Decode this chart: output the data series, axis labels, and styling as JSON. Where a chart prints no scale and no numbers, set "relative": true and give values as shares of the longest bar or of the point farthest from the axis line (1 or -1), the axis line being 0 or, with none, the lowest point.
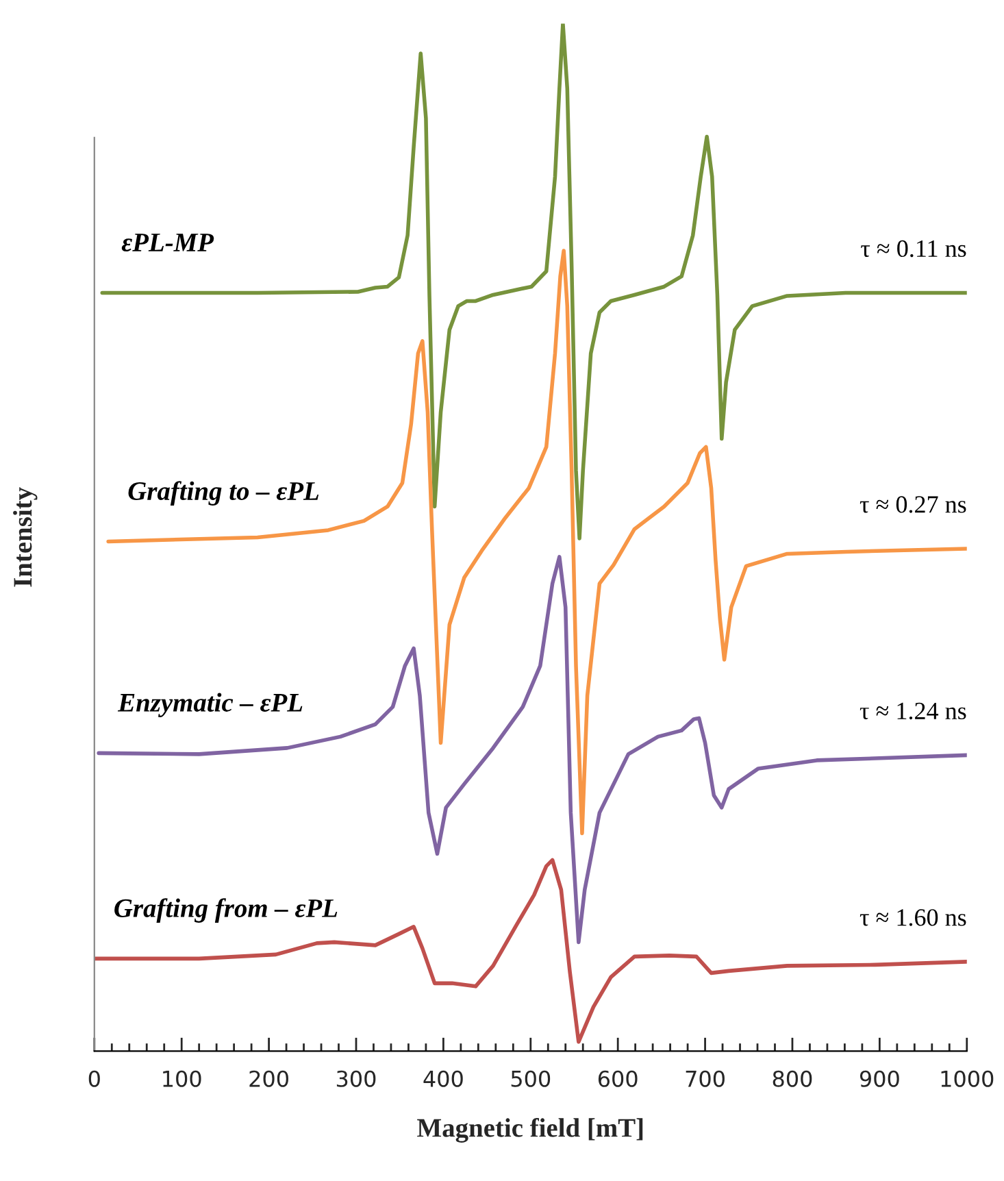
{
  "chart_data": {
    "type": "line",
    "relative": true,
    "xlabel": "Magnetic field [mT]",
    "ylabel": "Intensity",
    "xlim": [
      0,
      1000
    ],
    "xticks": [
      0,
      100,
      200,
      300,
      400,
      500,
      600,
      700,
      800,
      900,
      1000
    ],
    "grid": false,
    "legend": false,
    "marker": "none",
    "line_style": "solid",
    "series": [
      {
        "name": "εPL-MP",
        "color": "#77933c",
        "x": [
          9,
          187,
          302,
          322,
          336,
          349,
          359,
          366,
          374,
          380,
          384,
          390,
          397,
          407,
          417,
          427,
          437,
          457,
          484,
          501,
          518,
          528,
          533,
          537,
          542,
          547,
          552,
          556,
          560,
          569,
          579,
          592,
          619,
          653,
          673,
          686,
          695,
          702,
          708,
          714,
          719,
          724,
          734,
          754,
          794,
          861,
          1000
        ],
        "values": [
          0.738,
          0.738,
          0.739,
          0.743,
          0.744,
          0.753,
          0.794,
          0.88,
          0.971,
          0.908,
          0.736,
          0.53,
          0.622,
          0.702,
          0.725,
          0.73,
          0.73,
          0.736,
          0.741,
          0.744,
          0.759,
          0.851,
          0.937,
          1.0,
          0.937,
          0.765,
          0.565,
          0.499,
          0.565,
          0.679,
          0.719,
          0.73,
          0.736,
          0.744,
          0.754,
          0.794,
          0.851,
          0.89,
          0.851,
          0.736,
          0.596,
          0.651,
          0.702,
          0.725,
          0.735,
          0.738,
          0.738
        ]
      },
      {
        "name": "Grafting to – εPL",
        "color": "#f79646",
        "x": [
          16,
          187,
          268,
          309,
          336,
          353,
          363,
          371,
          376,
          382,
          387,
          397,
          407,
          424,
          444,
          471,
          498,
          518,
          528,
          534,
          538,
          542,
          547,
          552,
          559,
          565,
          579,
          595,
          619,
          653,
          680,
          694,
          701,
          707,
          712,
          717,
          722,
          730,
          747,
          794,
          862,
          1000
        ],
        "values": [
          0.496,
          0.5,
          0.507,
          0.516,
          0.53,
          0.553,
          0.61,
          0.679,
          0.691,
          0.622,
          0.507,
          0.3,
          0.415,
          0.461,
          0.487,
          0.519,
          0.548,
          0.588,
          0.679,
          0.754,
          0.779,
          0.725,
          0.565,
          0.375,
          0.212,
          0.346,
          0.455,
          0.473,
          0.508,
          0.53,
          0.553,
          0.582,
          0.588,
          0.548,
          0.478,
          0.421,
          0.381,
          0.432,
          0.472,
          0.484,
          0.486,
          0.489
        ]
      },
      {
        "name": "Enzymatic – εPL",
        "color": "#8064a2",
        "x": [
          5,
          120,
          221,
          282,
          322,
          342,
          356,
          366,
          373,
          383,
          393,
          403,
          424,
          457,
          491,
          511,
          525,
          533,
          540,
          546,
          555,
          562,
          579,
          612,
          646,
          673,
          687,
          693,
          700,
          710,
          719,
          727,
          761,
          828,
          1000
        ],
        "values": [
          0.29,
          0.289,
          0.295,
          0.306,
          0.318,
          0.335,
          0.375,
          0.392,
          0.346,
          0.232,
          0.192,
          0.237,
          0.26,
          0.295,
          0.335,
          0.375,
          0.455,
          0.481,
          0.432,
          0.232,
          0.106,
          0.157,
          0.232,
          0.289,
          0.306,
          0.312,
          0.323,
          0.324,
          0.3,
          0.249,
          0.237,
          0.255,
          0.275,
          0.283,
          0.288
        ]
      },
      {
        "name": "Grafting from – εPL",
        "color": "#c0504d",
        "x": [
          0,
          120,
          208,
          255,
          275,
          322,
          349,
          366,
          376,
          390,
          410,
          437,
          457,
          484,
          504,
          518,
          525,
          535,
          545,
          555,
          572,
          592,
          619,
          659,
          690,
          707,
          727,
          794,
          895,
          1000
        ],
        "values": [
          0.09,
          0.09,
          0.094,
          0.105,
          0.106,
          0.103,
          0.114,
          0.121,
          0.1,
          0.066,
          0.066,
          0.063,
          0.083,
          0.123,
          0.152,
          0.18,
          0.186,
          0.157,
          0.077,
          0.009,
          0.043,
          0.072,
          0.092,
          0.093,
          0.092,
          0.076,
          0.078,
          0.083,
          0.084,
          0.087
        ]
      }
    ],
    "annotations": [
      "τ ≈ 0.11 ns",
      "τ ≈ 0.27 ns",
      "τ ≈ 1.24 ns",
      "τ ≈ 1.60 ns"
    ]
  }
}
